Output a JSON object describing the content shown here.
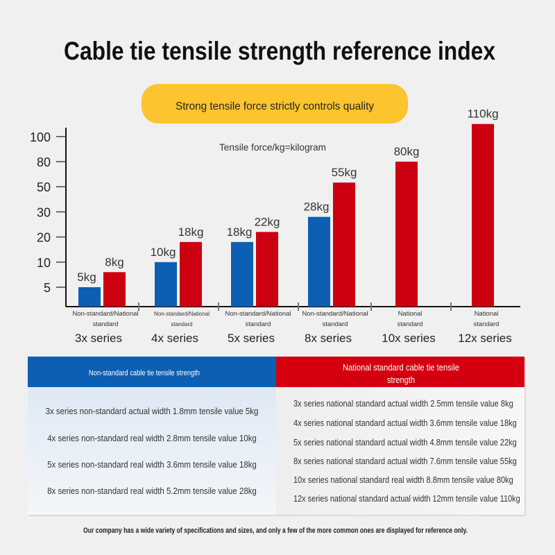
{
  "title": "Cable tie tensile strength reference index",
  "banner": "Strong tensile force strictly controls quality",
  "colors": {
    "non_standard": "#0c5fb3",
    "national_standard": "#cc0010",
    "banner": "#fcc42e",
    "background": "#f0f0f0"
  },
  "chart_data": {
    "type": "bar",
    "annotation": "Tensile force/kg=kilogram",
    "categories": [
      "3x series",
      "4x series",
      "5x series",
      "8x series",
      "10x series",
      "12x series"
    ],
    "category_sublabels": [
      [
        "Non-standard/National",
        "standard"
      ],
      [
        "Non-standard/National",
        "standard"
      ],
      [
        "Non-standard/National",
        "standard"
      ],
      [
        "Non-standard/National",
        "standard"
      ],
      [
        "National",
        "standard"
      ],
      [
        "National",
        "standard"
      ]
    ],
    "y_ticks": [
      5,
      10,
      20,
      30,
      50,
      80,
      100
    ],
    "y_scale": "non-uniform (evenly spaced ticks)",
    "grid": false,
    "series": [
      {
        "values": [
          5,
          10,
          18,
          28,
          null,
          null
        ],
        "labels": [
          "5kg",
          "10kg",
          "18kg",
          "28kg",
          "",
          ""
        ],
        "color": "#0c5fb3"
      },
      {
        "values": [
          8,
          18,
          22,
          55,
          80,
          110
        ],
        "labels": [
          "8kg",
          "18kg",
          "22kg",
          "55kg",
          "80kg",
          "110kg"
        ],
        "color": "#cc0010"
      }
    ]
  },
  "table": {
    "left_header": "Non-standard cable tie tensile strength",
    "right_header_lines": [
      "National standard cable tie tensile",
      "strength"
    ],
    "left_rows": [
      "3x series non-standard actual width 1.8mm tensile value 5kg",
      "4x series non-standard real width 2.8mm tensile value 10kg",
      "5x series non-standard real width 3.6mm tensile value 18kg",
      "8x series non-standard real width 5.2mm tensile value 28kg"
    ],
    "right_rows": [
      "3x series national standard actual width 2.5mm tensile value 8kg",
      "4x series national standard actual width 3.6mm tensile value 18kg",
      "5x series national standard actual width 4.8mm tensile value 22kg",
      "8x series national standard actual width 7.6mm tensile value 55kg",
      "10x series national standard real width 8.8mm tensile value 80kg",
      "12x series national standard actual width 12mm tensile value 110kg"
    ]
  },
  "footer": "Our company has a wide variety of specifications and sizes, and only a few of the more common ones are displayed for reference only."
}
